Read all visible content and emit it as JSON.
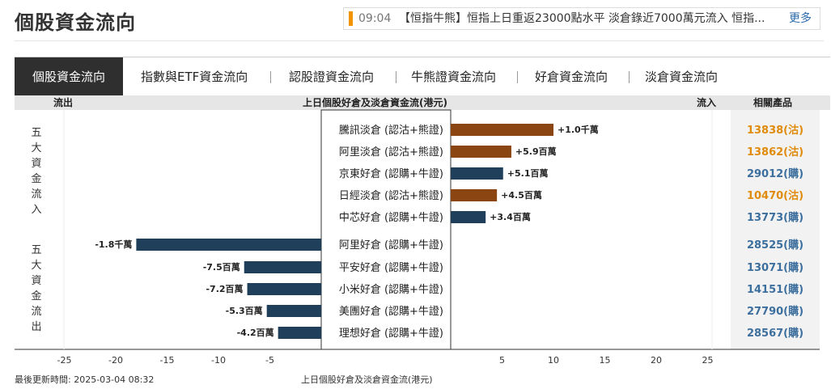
{
  "page_title": "個股資金流向",
  "ticker": {
    "time": "09:04",
    "text": "【恒指牛熊】恒指上日重返23000點水平 淡倉錄近7000萬元流入 恒指...",
    "more": "更多"
  },
  "tabs": [
    {
      "label": "個股資金流向",
      "active": true
    },
    {
      "label": "指數與ETF資金流向"
    },
    {
      "label": "認股證資金流向"
    },
    {
      "label": "牛熊證資金流向"
    },
    {
      "label": "好倉資金流向"
    },
    {
      "label": "淡倉資金流向"
    }
  ],
  "header": {
    "outflow": "流出",
    "center": "上日個股好倉及淡倉資金流(港元)",
    "inflow": "流入",
    "products": "相關產品"
  },
  "groups": {
    "inflow_label": "五大資金流入",
    "outflow_label": "五大資金流出"
  },
  "footer": {
    "updated": "最後更新時間: 2025-03-04 08:32",
    "caption": "上日個股好倉及淡倉資金流(港元)"
  },
  "colors": {
    "bear": "#8b4513",
    "bull": "#1f3f5a",
    "bear_text": "#e08b0b",
    "bull_text": "#3d6f9e"
  },
  "chart_data": {
    "type": "bar",
    "unit": "百萬港元",
    "xlim": [
      -30,
      30
    ],
    "x_ticks": [
      -25,
      -20,
      -15,
      -10,
      -5,
      5,
      10,
      15,
      20,
      25
    ],
    "rows": [
      {
        "category": "騰訊淡倉 (認沽+熊證)",
        "value": 10,
        "label": "+1.0千萬",
        "side": "bear",
        "product": "13838(沽)"
      },
      {
        "category": "阿里淡倉 (認沽+熊證)",
        "value": 5.9,
        "label": "+5.9百萬",
        "side": "bear",
        "product": "13862(沽)"
      },
      {
        "category": "京東好倉 (認購+牛證)",
        "value": 5.1,
        "label": "+5.1百萬",
        "side": "bull",
        "product": "29012(購)"
      },
      {
        "category": "日經淡倉 (認沽+熊證)",
        "value": 4.5,
        "label": "+4.5百萬",
        "side": "bear",
        "product": "10470(沽)"
      },
      {
        "category": "中芯好倉 (認購+牛證)",
        "value": 3.4,
        "label": "+3.4百萬",
        "side": "bull",
        "product": "13773(購)"
      },
      {
        "category": "阿里好倉 (認購+牛證)",
        "value": -18,
        "label": "-1.8千萬",
        "side": "bull",
        "product": "28525(購)"
      },
      {
        "category": "平安好倉 (認購+牛證)",
        "value": -7.5,
        "label": "-7.5百萬",
        "side": "bull",
        "product": "13071(購)"
      },
      {
        "category": "小米好倉 (認購+牛證)",
        "value": -7.2,
        "label": "-7.2百萬",
        "side": "bull",
        "product": "14151(購)"
      },
      {
        "category": "美團好倉 (認購+牛證)",
        "value": -5.3,
        "label": "-5.3百萬",
        "side": "bull",
        "product": "27790(購)"
      },
      {
        "category": "理想好倉 (認購+牛證)",
        "value": -4.2,
        "label": "-4.2百萬",
        "side": "bull",
        "product": "28567(購)"
      }
    ]
  }
}
